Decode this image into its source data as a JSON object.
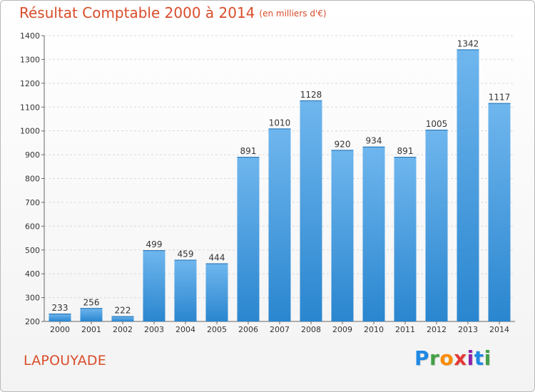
{
  "header": {
    "title": "Résultat Comptable 2000 à 2014",
    "subtitle": "(en milliers d'€)"
  },
  "footer": {
    "commune": "LAPOUYADE",
    "brand_letters": [
      "P",
      "r",
      "o",
      "x",
      "i",
      "t",
      "i"
    ],
    "brand_colors": [
      "#1e88e5",
      "#43a047",
      "#fb8c00",
      "#e53935",
      "#8e24aa",
      "#1e88e5",
      "#43a047"
    ]
  },
  "colors": {
    "title": "#d94c2a",
    "bar_top": "#6fb6ee",
    "bar_bottom": "#2a86cf",
    "grid": "#d9d9d9",
    "axis": "#666666"
  },
  "chart_data": {
    "type": "bar",
    "title": "Résultat Comptable 2000 à 2014",
    "subtitle": "(en milliers d'€)",
    "categories": [
      "2000",
      "2001",
      "2002",
      "2003",
      "2004",
      "2005",
      "2006",
      "2007",
      "2008",
      "2009",
      "2010",
      "2011",
      "2012",
      "2013",
      "2014"
    ],
    "values": [
      233,
      256,
      222,
      499,
      459,
      444,
      891,
      1010,
      1128,
      920,
      934,
      891,
      1005,
      1342,
      1117
    ],
    "value_labels": [
      "233",
      "256",
      "222",
      "499",
      "459",
      "444",
      "891",
      "1010",
      "1128",
      "920",
      "934",
      "891",
      "1005",
      "1342",
      "1117"
    ],
    "ylim": [
      200,
      1400
    ],
    "yticks": [
      200,
      300,
      400,
      500,
      600,
      700,
      800,
      900,
      1000,
      1100,
      1200,
      1300,
      1400
    ],
    "xlabel": "",
    "ylabel": "",
    "grid": true,
    "legend": "none"
  }
}
